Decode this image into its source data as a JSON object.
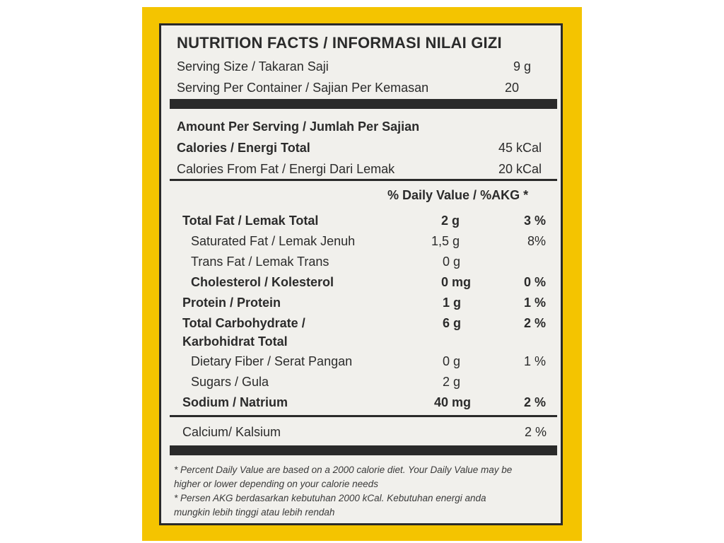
{
  "title": "NUTRITION FACTS / INFORMASI NILAI GIZI",
  "serving_size": {
    "label": "Serving Size / Takaran Saji",
    "value": "9 g"
  },
  "serving_per_container": {
    "label": "Serving Per Container / Sajian Per Kemasan",
    "value": "20"
  },
  "amount_per_serving": "Amount Per Serving / Jumlah Per Sajian",
  "calories": {
    "label": "Calories / Energi Total",
    "value": "45 kCal"
  },
  "calories_from_fat": {
    "label": "Calories From Fat / Energi Dari Lemak",
    "value": "20 kCal"
  },
  "daily_value_header": "% Daily Value / %AKG *",
  "nutrients": {
    "total_fat": {
      "label": "Total Fat / Lemak Total",
      "amount": "2 g",
      "dv": "3 %"
    },
    "saturated_fat": {
      "label": "Saturated Fat / Lemak Jenuh",
      "amount": "1,5 g",
      "dv": "8%"
    },
    "trans_fat": {
      "label": "Trans Fat / Lemak Trans",
      "amount": "0 g",
      "dv": ""
    },
    "cholesterol": {
      "label": "Cholesterol / Kolesterol",
      "amount": "0 mg",
      "dv": "0 %"
    },
    "protein": {
      "label": "Protein / Protein",
      "amount": "1 g",
      "dv": "1 %"
    },
    "total_carbohydrate": {
      "label_line1": "Total Carbohydrate  /",
      "label_line2": "Karbohidrat Total",
      "amount": "6 g",
      "dv": "2 %"
    },
    "dietary_fiber": {
      "label": "Dietary Fiber / Serat Pangan",
      "amount": "0 g",
      "dv": "1 %"
    },
    "sugars": {
      "label": "Sugars / Gula",
      "amount": "2 g",
      "dv": ""
    },
    "sodium": {
      "label": "Sodium / Natrium",
      "amount": "40 mg",
      "dv": "2 %"
    }
  },
  "calcium": {
    "label": "Calcium/ Kalsium",
    "dv": "2 %"
  },
  "footnotes": {
    "en_line1": "* Percent Daily Value are based on a 2000 calorie diet. Your Daily Value may be",
    "en_line2": "higher or lower depending on your calorie needs",
    "id_line1": "* Persen AKG berdasarkan kebutuhan 2000 kCal. Kebutuhan energi anda",
    "id_line2": "mungkin lebih tinggi atau lebih rendah"
  },
  "colors": {
    "package_yellow": "#f4c400",
    "label_background": "#f1f0ec",
    "ink": "#2a2a2a"
  }
}
